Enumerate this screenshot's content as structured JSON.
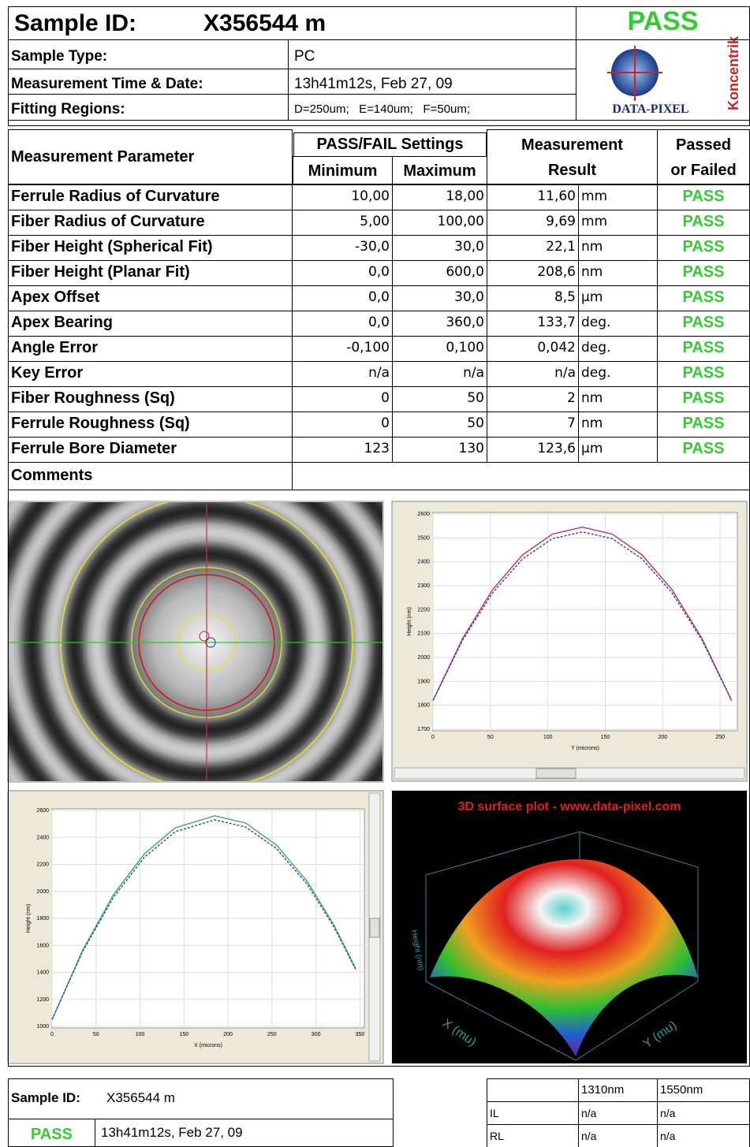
{
  "header": {
    "sample_id_label": "Sample ID:",
    "sample_id": "X356544 m",
    "status": "PASS",
    "fields": [
      {
        "label": "Sample Type:",
        "value": "PC"
      },
      {
        "label": "Measurement Time & Date:",
        "value": "13h41m12s, Feb 27, 09"
      },
      {
        "label": "Fitting Regions:",
        "value": "D=250um;   E=140um;   F=50um;"
      }
    ],
    "logo": {
      "brand": "DATA-PIXEL",
      "product": "Koncentrik"
    }
  },
  "table": {
    "headers": {
      "parameter": "Measurement Parameter",
      "settings": "PASS/FAIL Settings",
      "minimum": "Minimum",
      "maximum": "Maximum",
      "result": [
        "Measurement",
        "Result"
      ],
      "status": [
        "Passed",
        "or Failed"
      ]
    },
    "rows": [
      [
        "Ferrule Radius of Curvature",
        "10,00",
        "18,00",
        "11,60",
        "mm",
        "PASS"
      ],
      [
        "Fiber Radius of Curvature",
        "5,00",
        "100,00",
        "9,69",
        "mm",
        "PASS"
      ],
      [
        "Fiber Height (Spherical Fit)",
        "-30,0",
        "30,0",
        "22,1",
        "nm",
        "PASS"
      ],
      [
        "Fiber Height (Planar Fit)",
        "0,0",
        "600,0",
        "208,6",
        "nm",
        "PASS"
      ],
      [
        "Apex Offset",
        "0,0",
        "30,0",
        "8,5",
        "µm",
        "PASS"
      ],
      [
        "Apex Bearing",
        "0,0",
        "360,0",
        "133,7",
        "deg.",
        "PASS"
      ],
      [
        "Angle Error",
        "-0,100",
        "0,100",
        "0,042",
        "deg.",
        "PASS"
      ],
      [
        "Key Error",
        "n/a",
        "n/a",
        "n/a",
        "deg.",
        "PASS"
      ],
      [
        "Fiber Roughness (Sq)",
        "0",
        "50",
        "2",
        "nm",
        "PASS"
      ],
      [
        "Ferrule Roughness (Sq)",
        "0",
        "50",
        "7",
        "nm",
        "PASS"
      ],
      [
        "Ferrule Bore Diameter",
        "123",
        "130",
        "123,6",
        "µm",
        "PASS"
      ]
    ],
    "comments_label": "Comments"
  },
  "plots": [
    {
      "type": "line",
      "x_label": "Y (microns)",
      "y_label": "Height (nm)",
      "xlim": [
        0,
        265
      ],
      "ylim": [
        1700,
        2600
      ],
      "xticks": [
        0,
        50,
        100,
        150,
        200,
        250
      ],
      "yticks": [
        1700,
        1800,
        1900,
        2000,
        2100,
        2200,
        2300,
        2400,
        2500,
        2600
      ],
      "grid": true,
      "x": [
        0,
        26,
        52,
        78,
        104,
        130,
        156,
        182,
        208,
        234,
        260
      ],
      "series": [
        {
          "color": "#c0304a",
          "style": "solid",
          "values": [
            1820,
            2081,
            2284,
            2429,
            2516,
            2545,
            2516,
            2429,
            2284,
            2081,
            1820
          ]
        },
        {
          "color": "#3040c0",
          "style": "dashed",
          "values": [
            1820,
            2074,
            2271,
            2412,
            2497,
            2525,
            2497,
            2412,
            2271,
            2074,
            1820
          ]
        }
      ]
    },
    {
      "type": "line",
      "x_label": "X (microns)",
      "y_label": "Height (nm)",
      "xlim": [
        0,
        355
      ],
      "ylim": [
        1000,
        2600
      ],
      "xticks": [
        0,
        50,
        100,
        150,
        200,
        250,
        300,
        350
      ],
      "yticks": [
        1000,
        1200,
        1400,
        1600,
        1800,
        2000,
        2200,
        2400,
        2600
      ],
      "grid": true,
      "x": [
        0,
        35,
        70,
        105,
        140,
        185,
        220,
        255,
        290,
        320,
        345
      ],
      "series": [
        {
          "color": "#30b050",
          "style": "solid",
          "values": [
            1050,
            1567,
            1977,
            2278,
            2471,
            2560,
            2506,
            2344,
            2074,
            1756,
            1431
          ]
        },
        {
          "color": "#3040c0",
          "style": "dashed",
          "values": [
            1050,
            1557,
            1958,
            2253,
            2442,
            2530,
            2477,
            2318,
            2053,
            1742,
            1423
          ]
        }
      ]
    }
  ],
  "surface": {
    "title": "3D surface plot - www.data-pixel.com",
    "x_label": "X (mu)",
    "y_label": "Y (mu)",
    "z_label": "Height (nm)"
  },
  "footer": {
    "sample_id_label": "Sample ID:",
    "sample_id": "X356544 m",
    "status": "PASS",
    "date": "13h41m12s, Feb 27, 09",
    "loss_table": {
      "columns": [
        "1310nm",
        "1550nm"
      ],
      "rows": [
        {
          "label": "IL",
          "values": [
            "n/a",
            "n/a"
          ]
        },
        {
          "label": "RL",
          "values": [
            "n/a",
            "n/a"
          ]
        }
      ]
    }
  }
}
